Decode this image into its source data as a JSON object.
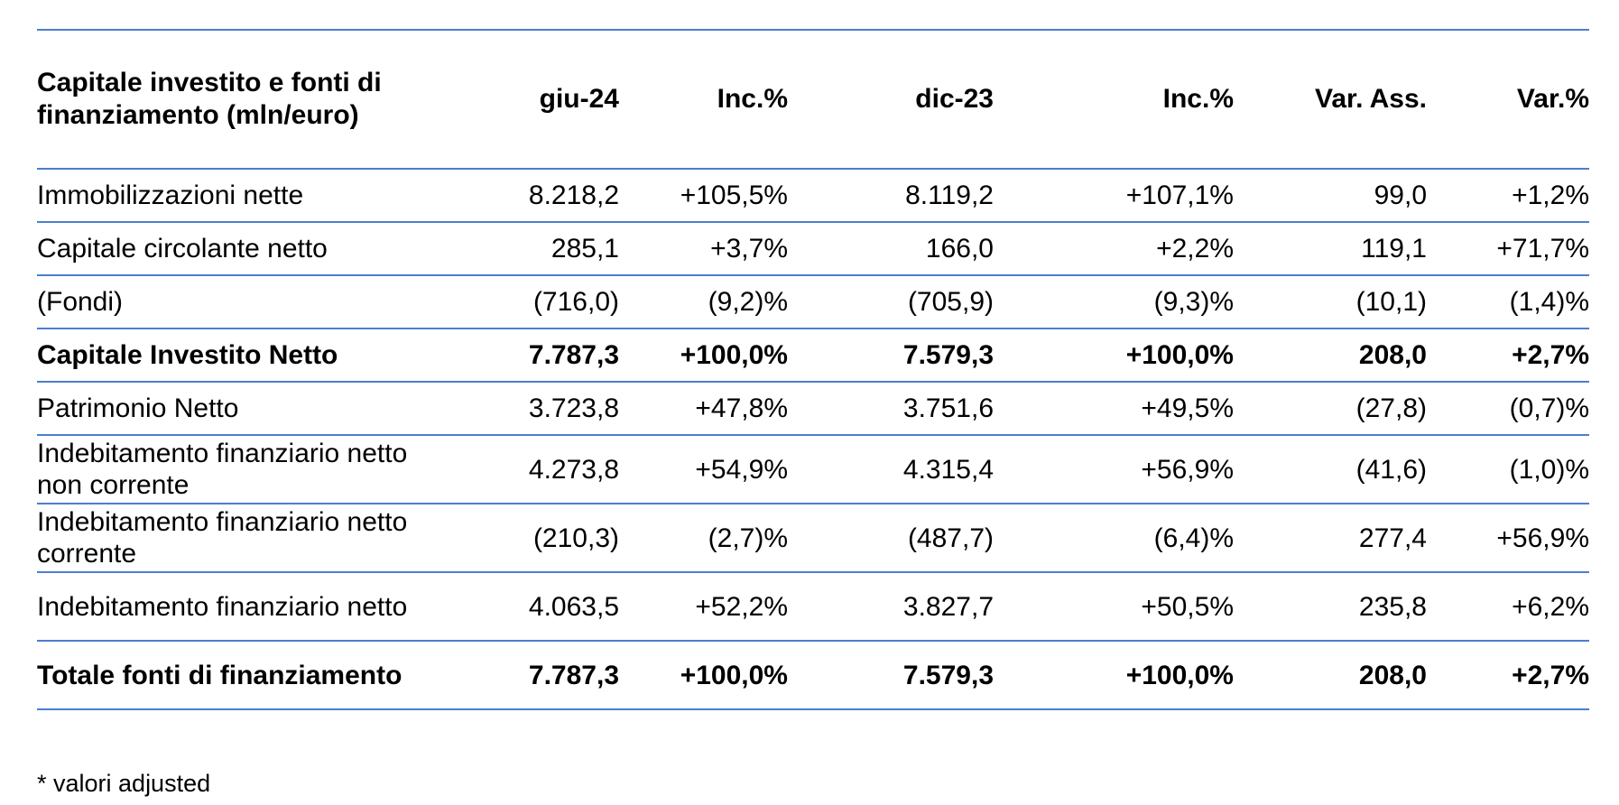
{
  "table": {
    "header": {
      "label": "Capitale investito e fonti di finanziamento (mln/euro)",
      "giu24": "giu-24",
      "inc1": "Inc.%",
      "dic23": "dic-23",
      "inc2": "Inc.%",
      "var_ass": "Var. Ass.",
      "var_pct": "Var.%"
    },
    "rows": [
      {
        "label": "Immobilizzazioni nette",
        "giu24": "8.218,2",
        "inc1": "+105,5%",
        "dic23": "8.119,2",
        "inc2": "+107,1%",
        "var_ass": "99,0",
        "var_pct": "+1,2%"
      },
      {
        "label": "Capitale circolante netto",
        "giu24": "285,1",
        "inc1": "+3,7%",
        "dic23": "166,0",
        "inc2": "+2,2%",
        "var_ass": "119,1",
        "var_pct": "+71,7%"
      },
      {
        "label": "(Fondi)",
        "giu24": "(716,0)",
        "inc1": "(9,2)%",
        "dic23": "(705,9)",
        "inc2": "(9,3)%",
        "var_ass": "(10,1)",
        "var_pct": "(1,4)%"
      },
      {
        "label": "Capitale Investito Netto",
        "giu24": "7.787,3",
        "inc1": "+100,0%",
        "dic23": "7.579,3",
        "inc2": "+100,0%",
        "var_ass": "208,0",
        "var_pct": "+2,7%"
      },
      {
        "label": "Patrimonio Netto",
        "giu24": "3.723,8",
        "inc1": "+47,8%",
        "dic23": "3.751,6",
        "inc2": "+49,5%",
        "var_ass": "(27,8)",
        "var_pct": "(0,7)%"
      },
      {
        "label": "Indebitamento finanziario netto non corrente",
        "giu24": "4.273,8",
        "inc1": "+54,9%",
        "dic23": "4.315,4",
        "inc2": "+56,9%",
        "var_ass": "(41,6)",
        "var_pct": "(1,0)%"
      },
      {
        "label": "Indebitamento finanziario netto corrente",
        "giu24": "(210,3)",
        "inc1": "(2,7)%",
        "dic23": "(487,7)",
        "inc2": "(6,4)%",
        "var_ass": "277,4",
        "var_pct": "+56,9%"
      },
      {
        "label": "Indebitamento finanziario netto",
        "giu24": "4.063,5",
        "inc1": "+52,2%",
        "dic23": "3.827,7",
        "inc2": "+50,5%",
        "var_ass": "235,8",
        "var_pct": "+6,2%"
      },
      {
        "label": "Totale fonti di finanziamento",
        "giu24": "7.787,3",
        "inc1": "+100,0%",
        "dic23": "7.579,3",
        "inc2": "+100,0%",
        "var_ass": "208,0",
        "var_pct": "+2,7%"
      }
    ]
  },
  "footnote": "* valori adjusted",
  "colors": {
    "rule": "#4a7fcf",
    "text": "#000000"
  }
}
